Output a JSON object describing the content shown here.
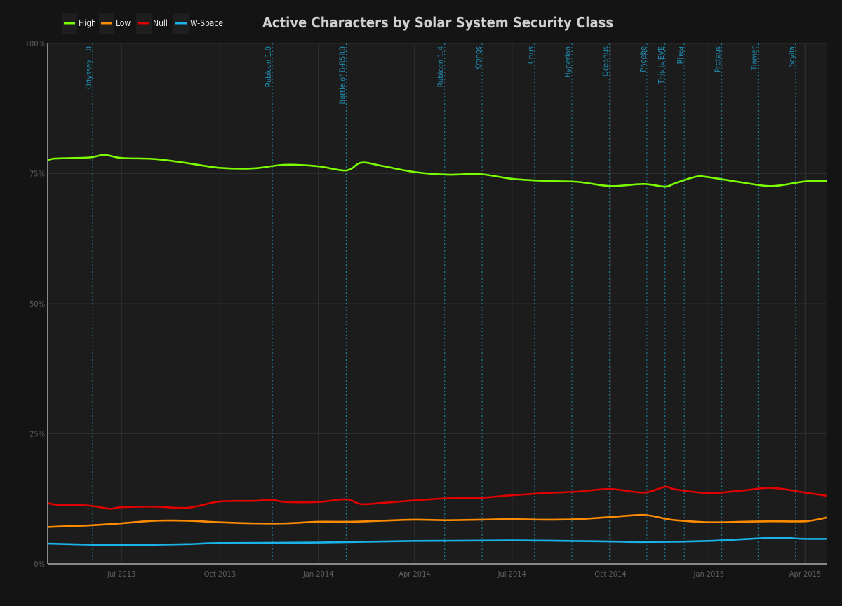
{
  "chart_data": {
    "type": "line",
    "title": "Active Characters by Solar System Security Class",
    "xlabel": "",
    "ylabel": "",
    "xlim": [
      "2013-04-23",
      "2015-04-21"
    ],
    "ylim": [
      0,
      100
    ],
    "grid": true,
    "legend_placement": "top-left",
    "y_ticks": [
      {
        "v": 0,
        "label": "0%"
      },
      {
        "v": 25,
        "label": "25%"
      },
      {
        "v": 50,
        "label": "50%"
      },
      {
        "v": 75,
        "label": "75%"
      },
      {
        "v": 100,
        "label": "100%"
      }
    ],
    "x_ticks": [
      {
        "date": "2013-07-01",
        "label": "Jul 2013"
      },
      {
        "date": "2013-10-01",
        "label": "Oct 2013"
      },
      {
        "date": "2014-01-01",
        "label": "Jan 2014"
      },
      {
        "date": "2014-04-01",
        "label": "Apr 2014"
      },
      {
        "date": "2014-07-01",
        "label": "Jul 2014"
      },
      {
        "date": "2014-10-01",
        "label": "Oct 2014"
      },
      {
        "date": "2015-01-01",
        "label": "Jan 2015"
      },
      {
        "date": "2015-04-01",
        "label": "Apr 2015"
      }
    ],
    "annotations": [
      {
        "date": "2013-06-04",
        "label": "Odyssey 1.0"
      },
      {
        "date": "2013-11-19",
        "label": "Rubicon 1.0"
      },
      {
        "date": "2014-01-27",
        "label": "Battle of B-R5RB"
      },
      {
        "date": "2014-04-29",
        "label": "Rubicon 1.4"
      },
      {
        "date": "2014-06-03",
        "label": "Kronos"
      },
      {
        "date": "2014-07-22",
        "label": "Crius"
      },
      {
        "date": "2014-08-26",
        "label": "Hyperion"
      },
      {
        "date": "2014-09-30",
        "label": "Oceanus"
      },
      {
        "date": "2014-11-04",
        "label": "Phoebe"
      },
      {
        "date": "2014-11-21",
        "label": "This is EVE"
      },
      {
        "date": "2014-12-09",
        "label": "Rhea"
      },
      {
        "date": "2015-01-13",
        "label": "Proteus"
      },
      {
        "date": "2015-02-16",
        "label": "Tiamat"
      },
      {
        "date": "2015-03-23",
        "label": "Scylla"
      }
    ],
    "series": [
      {
        "name": "High",
        "color": "#7cfc00",
        "points": [
          [
            "2013-04-23",
            77.6
          ],
          [
            "2013-05-01",
            77.9
          ],
          [
            "2013-06-01",
            78.1
          ],
          [
            "2013-06-15",
            78.6
          ],
          [
            "2013-07-01",
            78.0
          ],
          [
            "2013-08-01",
            77.8
          ],
          [
            "2013-09-01",
            77.0
          ],
          [
            "2013-10-01",
            76.1
          ],
          [
            "2013-11-01",
            76.0
          ],
          [
            "2013-12-01",
            76.7
          ],
          [
            "2014-01-01",
            76.4
          ],
          [
            "2014-01-27",
            75.6
          ],
          [
            "2014-02-10",
            77.1
          ],
          [
            "2014-03-01",
            76.5
          ],
          [
            "2014-04-01",
            75.3
          ],
          [
            "2014-05-01",
            74.8
          ],
          [
            "2014-06-01",
            74.9
          ],
          [
            "2014-07-01",
            74.0
          ],
          [
            "2014-08-01",
            73.6
          ],
          [
            "2014-09-01",
            73.4
          ],
          [
            "2014-10-01",
            72.6
          ],
          [
            "2014-11-01",
            73.0
          ],
          [
            "2014-11-21",
            72.5
          ],
          [
            "2014-12-01",
            73.2
          ],
          [
            "2014-12-20",
            74.4
          ],
          [
            "2015-01-01",
            74.3
          ],
          [
            "2015-02-01",
            73.3
          ],
          [
            "2015-03-01",
            72.6
          ],
          [
            "2015-04-01",
            73.5
          ],
          [
            "2015-04-21",
            73.6
          ]
        ]
      },
      {
        "name": "Low",
        "color": "#ff8c00",
        "points": [
          [
            "2013-04-23",
            7.1
          ],
          [
            "2013-06-01",
            7.4
          ],
          [
            "2013-07-01",
            7.8
          ],
          [
            "2013-08-01",
            8.3
          ],
          [
            "2013-09-01",
            8.3
          ],
          [
            "2013-10-01",
            8.0
          ],
          [
            "2013-11-01",
            7.8
          ],
          [
            "2013-12-01",
            7.8
          ],
          [
            "2014-01-01",
            8.1
          ],
          [
            "2014-02-01",
            8.1
          ],
          [
            "2014-03-01",
            8.3
          ],
          [
            "2014-04-01",
            8.5
          ],
          [
            "2014-05-01",
            8.4
          ],
          [
            "2014-06-01",
            8.5
          ],
          [
            "2014-07-01",
            8.6
          ],
          [
            "2014-08-01",
            8.5
          ],
          [
            "2014-09-01",
            8.6
          ],
          [
            "2014-10-01",
            9.0
          ],
          [
            "2014-11-01",
            9.4
          ],
          [
            "2014-11-21",
            8.7
          ],
          [
            "2014-12-01",
            8.4
          ],
          [
            "2015-01-01",
            8.0
          ],
          [
            "2015-02-01",
            8.1
          ],
          [
            "2015-03-01",
            8.2
          ],
          [
            "2015-04-01",
            8.2
          ],
          [
            "2015-04-21",
            8.9
          ]
        ]
      },
      {
        "name": "Null",
        "color": "#e00000",
        "points": [
          [
            "2013-04-23",
            11.7
          ],
          [
            "2013-05-01",
            11.4
          ],
          [
            "2013-06-01",
            11.2
          ],
          [
            "2013-06-20",
            10.6
          ],
          [
            "2013-07-01",
            10.9
          ],
          [
            "2013-08-01",
            11.0
          ],
          [
            "2013-09-01",
            10.8
          ],
          [
            "2013-10-01",
            12.0
          ],
          [
            "2013-11-01",
            12.1
          ],
          [
            "2013-11-19",
            12.3
          ],
          [
            "2013-12-01",
            11.9
          ],
          [
            "2014-01-01",
            11.9
          ],
          [
            "2014-01-27",
            12.4
          ],
          [
            "2014-02-10",
            11.5
          ],
          [
            "2014-03-01",
            11.7
          ],
          [
            "2014-04-01",
            12.2
          ],
          [
            "2014-05-01",
            12.6
          ],
          [
            "2014-06-01",
            12.7
          ],
          [
            "2014-07-01",
            13.2
          ],
          [
            "2014-08-01",
            13.6
          ],
          [
            "2014-09-01",
            13.9
          ],
          [
            "2014-10-01",
            14.4
          ],
          [
            "2014-11-01",
            13.7
          ],
          [
            "2014-11-21",
            14.8
          ],
          [
            "2014-12-01",
            14.3
          ],
          [
            "2015-01-01",
            13.6
          ],
          [
            "2015-02-01",
            14.1
          ],
          [
            "2015-03-01",
            14.6
          ],
          [
            "2015-04-01",
            13.7
          ],
          [
            "2015-04-21",
            13.1
          ]
        ]
      },
      {
        "name": "W-Space",
        "color": "#1ab2e8",
        "points": [
          [
            "2013-04-23",
            3.9
          ],
          [
            "2013-06-01",
            3.7
          ],
          [
            "2013-07-01",
            3.6
          ],
          [
            "2013-09-01",
            3.8
          ],
          [
            "2013-10-01",
            4.0
          ],
          [
            "2014-01-01",
            4.1
          ],
          [
            "2014-04-01",
            4.4
          ],
          [
            "2014-07-01",
            4.5
          ],
          [
            "2014-10-01",
            4.3
          ],
          [
            "2014-11-01",
            4.2
          ],
          [
            "2015-01-01",
            4.4
          ],
          [
            "2015-03-01",
            5.0
          ],
          [
            "2015-04-01",
            4.8
          ],
          [
            "2015-04-21",
            4.8
          ]
        ]
      }
    ]
  }
}
